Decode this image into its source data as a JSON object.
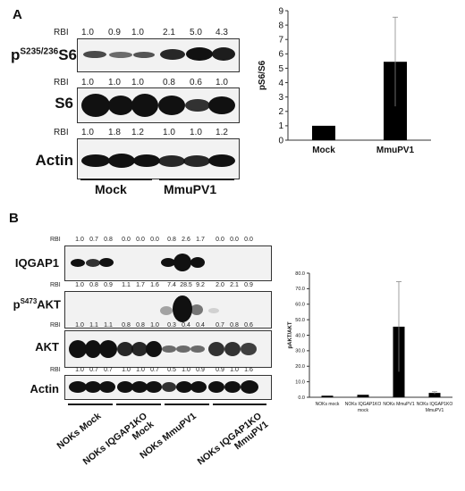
{
  "panel_a": {
    "letter": "A",
    "rows": [
      {
        "rbi_label": "RBI",
        "rbi_values": [
          "1.0",
          "0.9",
          "1.0",
          "2.1",
          "5.0",
          "4.3"
        ],
        "blot_label": "S6"
      },
      {
        "rbi_label": "RBI",
        "rbi_values": [
          "1.0",
          "1.0",
          "1.0",
          "0.8",
          "0.6",
          "1.0"
        ],
        "blot_label": "S6"
      },
      {
        "rbi_label": "RBI",
        "rbi_values": [
          "1.0",
          "1.8",
          "1.2",
          "1.0",
          "1.0",
          "1.2"
        ],
        "blot_label": "Actin"
      }
    ],
    "row1_label_prefix": "p",
    "row1_label_sup": "S235/236",
    "group_labels": [
      "Mock",
      "MmuPV1"
    ]
  },
  "panel_b": {
    "letter": "B",
    "rows": [
      {
        "rbi_label": "RBI",
        "rbi_values": [
          "1.0",
          "0.7",
          "0.8",
          "0.0",
          "0.0",
          "0.0",
          "0.8",
          "2.6",
          "1.7",
          "0.0",
          "0.0",
          "0.0"
        ],
        "blot_label": "IQGAP1"
      },
      {
        "rbi_label": "RBI",
        "rbi_values": [
          "1.0",
          "0.8",
          "0.9",
          "1.1",
          "1.7",
          "1.6",
          "7.4",
          "28.5",
          "9.2",
          "2.0",
          "2.1",
          "0.9"
        ],
        "blot_label": "AKT"
      },
      {
        "rbi_label": "RBI",
        "rbi_values": [
          "1.0",
          "1.1",
          "1.1",
          "0.8",
          "0.8",
          "1.0",
          "0.3",
          "0.4",
          "0.4",
          "0.7",
          "0.8",
          "0.6"
        ],
        "blot_label": "AKT"
      },
      {
        "rbi_label": "RBI",
        "rbi_values": [
          "1.0",
          "0.7",
          "0.7",
          "1.0",
          "1.0",
          "0.7",
          "0.5",
          "1.0",
          "0.9",
          "0.9",
          "1.0",
          "1.6"
        ],
        "blot_label": "Actin"
      }
    ],
    "row2_label_prefix": "p",
    "row2_label_sup": "S473",
    "group_labels": [
      {
        "line1": "NOKs Mock",
        "line2": ""
      },
      {
        "line1": "NOKs IQGAP1KO",
        "line2": "Mock"
      },
      {
        "line1": "NOKs MmuPV1",
        "line2": ""
      },
      {
        "line1": "NOKs IQGAP1KO",
        "line2": "MmuPV1"
      }
    ]
  },
  "chart_data": [
    {
      "type": "bar",
      "categories": [
        "Mock",
        "MmuPV1"
      ],
      "values": [
        1.0,
        5.45
      ],
      "error": [
        0.0,
        3.1
      ],
      "title": "",
      "xlabel": "",
      "ylabel": "pS6/S6",
      "ylim": [
        0,
        9
      ],
      "yticks": [
        "0",
        "1",
        "2",
        "3",
        "4",
        "5",
        "6",
        "7",
        "8",
        "9"
      ],
      "grid": false,
      "bar_color": "#000000"
    },
    {
      "type": "bar",
      "categories": [
        "NOKs mock",
        "NOKs IQGAP1KO mock",
        "NOKs MmuPV1",
        "NOKs IQGAP1KO MmuPV1"
      ],
      "category_lines": [
        [
          "NOKs mock"
        ],
        [
          "NOKs IQGAP1KO",
          "mock"
        ],
        [
          "NOKs MmuPV1"
        ],
        [
          "NOKs IQGAP1KO",
          "MmuPV1"
        ]
      ],
      "values": [
        1.0,
        1.6,
        45.5,
        2.8
      ],
      "error": [
        0.0,
        0.0,
        29.0,
        0.8
      ],
      "title": "",
      "xlabel": "",
      "ylabel": "pAKT/AKT",
      "ylim": [
        0,
        80
      ],
      "yticks": [
        "0.0",
        "10.0",
        "20.0",
        "30.0",
        "40.0",
        "50.0",
        "60.0",
        "70.0",
        "80.0"
      ],
      "grid": false,
      "bar_color": "#000000"
    }
  ]
}
